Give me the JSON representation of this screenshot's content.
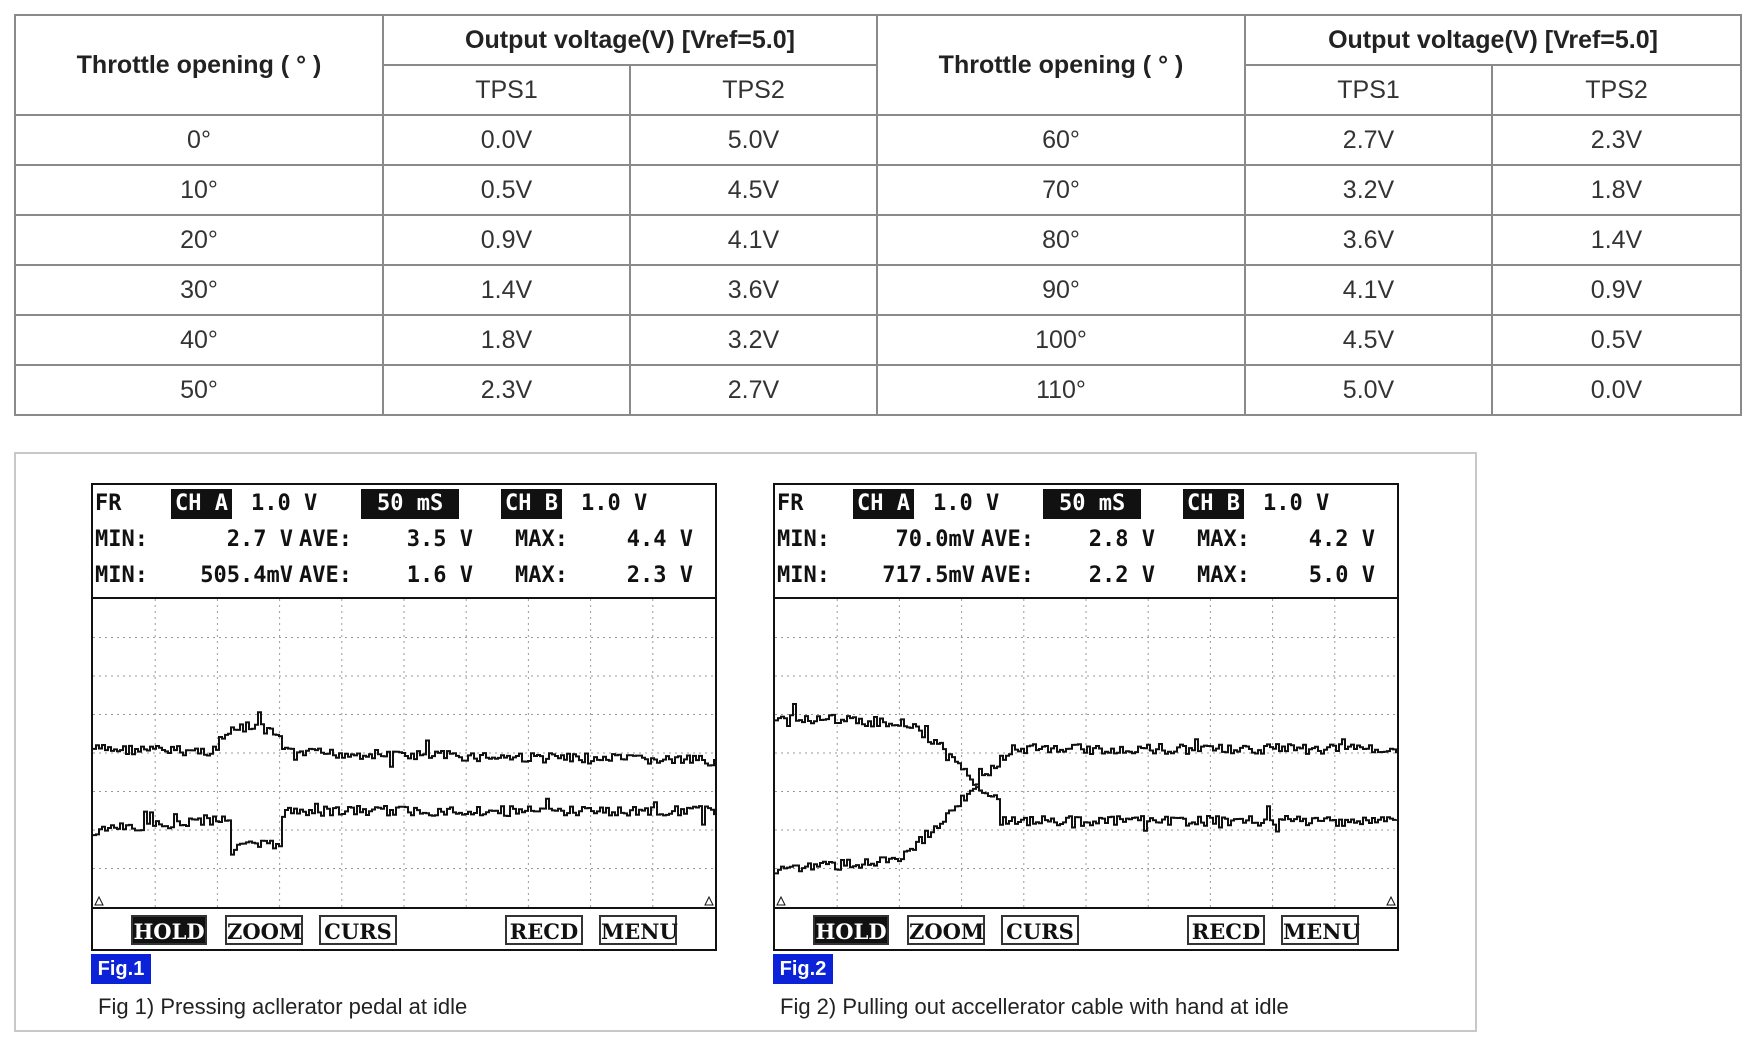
{
  "table": {
    "col_throttle": "Throttle opening ( ° )",
    "col_output": "Output voltage(V) [Vref=5.0]",
    "col_tps1": "TPS1",
    "col_tps2": "TPS2",
    "rows": [
      {
        "angle_a": "0°",
        "tps1_a": "0.0V",
        "tps2_a": "5.0V",
        "angle_b": "60°",
        "tps1_b": "2.7V",
        "tps2_b": "2.3V"
      },
      {
        "angle_a": "10°",
        "tps1_a": "0.5V",
        "tps2_a": "4.5V",
        "angle_b": "70°",
        "tps1_b": "3.2V",
        "tps2_b": "1.8V"
      },
      {
        "angle_a": "20°",
        "tps1_a": "0.9V",
        "tps2_a": "4.1V",
        "angle_b": "80°",
        "tps1_b": "3.6V",
        "tps2_b": "1.4V"
      },
      {
        "angle_a": "30°",
        "tps1_a": "1.4V",
        "tps2_a": "3.6V",
        "angle_b": "90°",
        "tps1_b": "4.1V",
        "tps2_b": "0.9V"
      },
      {
        "angle_a": "40°",
        "tps1_a": "1.8V",
        "tps2_a": "3.2V",
        "angle_b": "100°",
        "tps1_b": "4.5V",
        "tps2_b": "0.5V"
      },
      {
        "angle_a": "50°",
        "tps1_a": "2.3V",
        "tps2_a": "2.7V",
        "angle_b": "110°",
        "tps1_b": "5.0V",
        "tps2_b": "0.0V"
      }
    ]
  },
  "figures": [
    {
      "header": {
        "fr": "FR",
        "cha_label": "CH A",
        "cha_scale": "1.0 V",
        "timebase": "50 mS",
        "chb_label": "CH B",
        "chb_scale": "1.0 V",
        "row2": {
          "min_label": "MIN:",
          "min": "2.7 V",
          "ave_label": "AVE:",
          "ave": "3.5 V",
          "max_label": "MAX:",
          "max": "4.4 V"
        },
        "row3": {
          "min_label": "MIN:",
          "min": "505.4mV",
          "ave_label": "AVE:",
          "ave": "1.6 V",
          "max_label": "MAX:",
          "max": "2.3 V"
        }
      },
      "buttons": {
        "hold": "HOLD",
        "zoom": "ZOOM",
        "curs": "CURS",
        "recd": "RECD",
        "menu": "MENU"
      },
      "tag": "Fig.1",
      "caption": "Fig 1) Pressing acllerator pedal at idle"
    },
    {
      "header": {
        "fr": "FR",
        "cha_label": "CH A",
        "cha_scale": "1.0 V",
        "timebase": "50 mS",
        "chb_label": "CH B",
        "chb_scale": "1.0 V",
        "row2": {
          "min_label": "MIN:",
          "min": "70.0mV",
          "ave_label": "AVE:",
          "ave": "2.8 V",
          "max_label": "MAX:",
          "max": "4.2 V"
        },
        "row3": {
          "min_label": "MIN:",
          "min": "717.5mV",
          "ave_label": "AVE:",
          "ave": "2.2 V",
          "max_label": "MAX:",
          "max": "5.0 V"
        }
      },
      "buttons": {
        "hold": "HOLD",
        "zoom": "ZOOM",
        "curs": "CURS",
        "recd": "RECD",
        "menu": "MENU"
      },
      "tag": "Fig.2",
      "caption": "Fig 2) Pulling out accellerator cable with hand at idle"
    }
  ]
}
